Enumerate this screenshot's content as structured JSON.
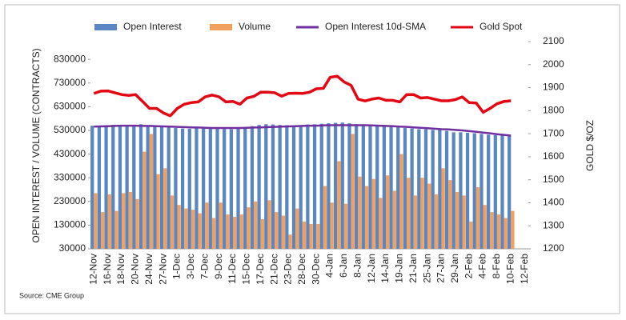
{
  "chart_data": {
    "type": "bar",
    "y_label": "OPEN INTEREST / VOLUME (CONTRACTS)",
    "y2_label": "GOLD $/OZ",
    "source": "Source: CME Group",
    "categories": [
      "12-Nov",
      null,
      "16-Nov",
      null,
      "18-Nov",
      null,
      "20-Nov",
      null,
      "24-Nov",
      null,
      "27-Nov",
      null,
      "1-Dec",
      null,
      "3-Dec",
      null,
      "7-Dec",
      null,
      "9-Dec",
      null,
      "11-Dec",
      null,
      "15-Dec",
      null,
      "17-Dec",
      null,
      "21-Dec",
      null,
      "23-Dec",
      null,
      "28-Dec",
      null,
      "30-Dec",
      null,
      "4-Jan",
      null,
      "6-Jan",
      null,
      "8-Jan",
      null,
      "12-Jan",
      null,
      "14-Jan",
      null,
      "19-Jan",
      null,
      "21-Jan",
      null,
      "25-Jan",
      null,
      "27-Jan",
      null,
      "29-Jan",
      null,
      "2-Feb",
      null,
      "4-Feb",
      null,
      "8-Feb",
      null,
      "10-Feb",
      null,
      "12-Feb"
    ],
    "series": [
      {
        "name": "Open Interest",
        "type": "bar",
        "color": "#5a86c2",
        "values": [
          550000,
          550000,
          552000,
          553000,
          553000,
          552000,
          551000,
          556000,
          552000,
          548000,
          545000,
          543000,
          540000,
          538000,
          537000,
          540000,
          541000,
          540000,
          538000,
          536000,
          535000,
          537000,
          540000,
          548000,
          553000,
          556000,
          555000,
          553000,
          552000,
          550000,
          552000,
          555000,
          556000,
          558000,
          560000,
          562000,
          563000,
          560000,
          556000,
          553000,
          552000,
          550000,
          548000,
          545000,
          543000,
          540000,
          538000,
          535000,
          535000,
          532000,
          532000,
          528000,
          522000,
          522000,
          520000,
          518000,
          515000,
          512000,
          510000,
          508000,
          506000,
          null,
          null
        ]
      },
      {
        "name": "Volume",
        "type": "bar",
        "color": "#f2a05e",
        "values": [
          265000,
          185000,
          260000,
          190000,
          265000,
          270000,
          240000,
          440000,
          515000,
          345000,
          370000,
          255000,
          215000,
          200000,
          195000,
          180000,
          225000,
          160000,
          225000,
          175000,
          165000,
          175000,
          205000,
          230000,
          155000,
          235000,
          185000,
          170000,
          90000,
          200000,
          145000,
          135000,
          135000,
          295000,
          225000,
          400000,
          220000,
          515000,
          335000,
          295000,
          325000,
          245000,
          340000,
          275000,
          430000,
          330000,
          255000,
          330000,
          305000,
          260000,
          370000,
          320000,
          270000,
          255000,
          145000,
          290000,
          215000,
          185000,
          175000,
          160000,
          190000,
          null,
          null
        ]
      },
      {
        "name": "Open Interest 10d-SMA",
        "type": "line",
        "color": "#7030a0",
        "values": [
          546000,
          547000,
          548000,
          549000,
          550000,
          550000,
          550000,
          549000,
          549000,
          548000,
          547000,
          546000,
          545000,
          544000,
          543000,
          542000,
          541000,
          540000,
          540000,
          540000,
          540000,
          540000,
          541000,
          542000,
          543000,
          544000,
          545000,
          546000,
          547000,
          548000,
          549000,
          550000,
          550000,
          551000,
          552000,
          552000,
          552000,
          552000,
          552000,
          552000,
          551000,
          550000,
          549000,
          548000,
          546000,
          545000,
          543000,
          541000,
          539000,
          537000,
          535000,
          534000,
          532000,
          530000,
          527000,
          524000,
          521000,
          518000,
          514000,
          511000,
          508000,
          null,
          null
        ]
      },
      {
        "name": "Gold Spot",
        "type": "line",
        "axis": "y2",
        "color": "#e30613",
        "values": [
          1875,
          1885,
          1886,
          1878,
          1870,
          1866,
          1870,
          1840,
          1810,
          1810,
          1790,
          1778,
          1810,
          1828,
          1835,
          1838,
          1860,
          1868,
          1860,
          1838,
          1840,
          1828,
          1855,
          1862,
          1880,
          1880,
          1878,
          1863,
          1875,
          1876,
          1875,
          1880,
          1895,
          1897,
          1945,
          1950,
          1925,
          1910,
          1850,
          1842,
          1850,
          1855,
          1845,
          1845,
          1838,
          1870,
          1870,
          1855,
          1857,
          1850,
          1843,
          1843,
          1848,
          1860,
          1835,
          1833,
          1793,
          1810,
          1830,
          1840,
          1843,
          null,
          null
        ]
      }
    ],
    "ylim": [
      30000,
      905000
    ],
    "yticks": [
      30000,
      130000,
      230000,
      330000,
      430000,
      530000,
      630000,
      730000,
      830000
    ],
    "y2lim": [
      1200,
      2100
    ],
    "y2ticks": [
      1200,
      1300,
      1400,
      1500,
      1600,
      1700,
      1800,
      1900,
      2000,
      2100
    ]
  }
}
